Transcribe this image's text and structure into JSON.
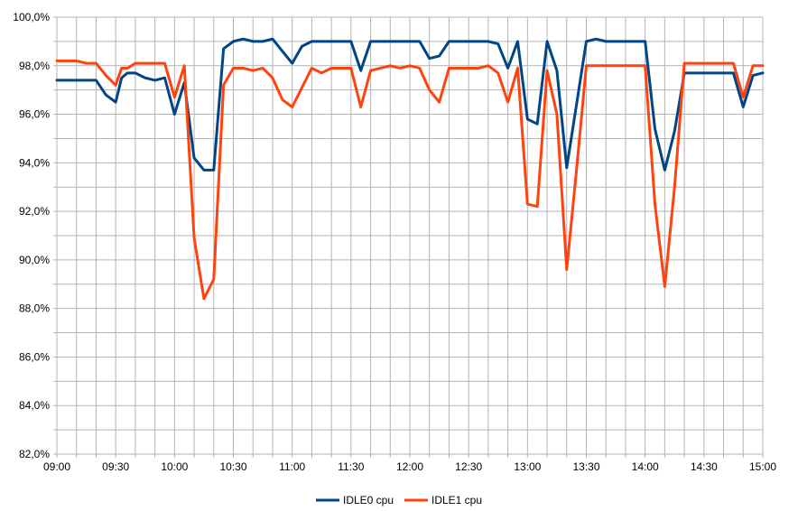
{
  "chart_data": {
    "type": "line",
    "title": "",
    "xlabel": "",
    "ylabel": "",
    "ylim": [
      82,
      100
    ],
    "xlim": [
      "09:00",
      "15:00"
    ],
    "y_ticks": [
      "82,0%",
      "84,0%",
      "86,0%",
      "88,0%",
      "90,0%",
      "92,0%",
      "94,0%",
      "96,0%",
      "98,0%",
      "100,0%"
    ],
    "x_ticks": [
      "09:00",
      "09:30",
      "10:00",
      "10:30",
      "11:00",
      "11:30",
      "12:00",
      "12:30",
      "13:00",
      "13:30",
      "14:00",
      "14:30",
      "15:00"
    ],
    "grid": true,
    "legend_position": "bottom",
    "series": [
      {
        "name": "IDLE0 cpu",
        "color": "#004586",
        "x": [
          "09:00",
          "09:05",
          "09:10",
          "09:15",
          "09:20",
          "09:25",
          "09:30",
          "09:33",
          "09:36",
          "09:40",
          "09:45",
          "09:50",
          "09:55",
          "10:00",
          "10:05",
          "10:10",
          "10:15",
          "10:20",
          "10:25",
          "10:30",
          "10:35",
          "10:40",
          "10:45",
          "10:50",
          "10:55",
          "11:00",
          "11:05",
          "11:10",
          "11:15",
          "11:20",
          "11:25",
          "11:30",
          "11:35",
          "11:40",
          "11:45",
          "11:50",
          "11:55",
          "12:00",
          "12:05",
          "12:10",
          "12:15",
          "12:20",
          "12:25",
          "12:30",
          "12:35",
          "12:40",
          "12:45",
          "12:50",
          "12:55",
          "13:00",
          "13:05",
          "13:10",
          "13:15",
          "13:20",
          "13:25",
          "13:30",
          "13:35",
          "13:40",
          "13:45",
          "13:50",
          "13:55",
          "14:00",
          "14:05",
          "14:10",
          "14:15",
          "14:20",
          "14:25",
          "14:30",
          "14:35",
          "14:40",
          "14:45",
          "14:50",
          "14:55",
          "15:00"
        ],
        "values": [
          97.4,
          97.4,
          97.4,
          97.4,
          97.4,
          96.8,
          96.5,
          97.5,
          97.7,
          97.7,
          97.5,
          97.4,
          97.5,
          96.0,
          97.3,
          94.2,
          93.7,
          93.7,
          98.7,
          99.0,
          99.1,
          99.0,
          99.0,
          99.1,
          98.6,
          98.1,
          98.8,
          99.0,
          99.0,
          99.0,
          99.0,
          99.0,
          97.8,
          99.0,
          99.0,
          99.0,
          99.0,
          99.0,
          99.0,
          98.3,
          98.4,
          99.0,
          99.0,
          99.0,
          99.0,
          99.0,
          98.9,
          97.9,
          99.0,
          95.8,
          95.6,
          99.0,
          97.8,
          93.8,
          96.4,
          99.0,
          99.1,
          99.0,
          99.0,
          99.0,
          99.0,
          99.0,
          95.4,
          93.7,
          95.3,
          97.7,
          97.7,
          97.7,
          97.7,
          97.7,
          97.7,
          96.3,
          97.6,
          97.7
        ]
      },
      {
        "name": "IDLE1 cpu",
        "color": "#ff420e",
        "x": [
          "09:00",
          "09:05",
          "09:10",
          "09:15",
          "09:20",
          "09:25",
          "09:30",
          "09:33",
          "09:36",
          "09:40",
          "09:45",
          "09:50",
          "09:55",
          "10:00",
          "10:05",
          "10:10",
          "10:15",
          "10:20",
          "10:25",
          "10:30",
          "10:35",
          "10:40",
          "10:45",
          "10:50",
          "10:55",
          "11:00",
          "11:05",
          "11:10",
          "11:15",
          "11:20",
          "11:25",
          "11:30",
          "11:35",
          "11:40",
          "11:45",
          "11:50",
          "11:55",
          "12:00",
          "12:05",
          "12:10",
          "12:15",
          "12:20",
          "12:25",
          "12:30",
          "12:35",
          "12:40",
          "12:45",
          "12:50",
          "12:55",
          "13:00",
          "13:05",
          "13:10",
          "13:15",
          "13:20",
          "13:25",
          "13:30",
          "13:35",
          "13:40",
          "13:45",
          "13:50",
          "13:55",
          "14:00",
          "14:05",
          "14:10",
          "14:15",
          "14:20",
          "14:25",
          "14:30",
          "14:35",
          "14:40",
          "14:45",
          "14:50",
          "14:55",
          "15:00"
        ],
        "values": [
          98.2,
          98.2,
          98.2,
          98.1,
          98.1,
          97.6,
          97.2,
          97.9,
          97.9,
          98.1,
          98.1,
          98.1,
          98.1,
          96.7,
          98.0,
          90.9,
          88.4,
          89.2,
          97.2,
          97.9,
          97.9,
          97.8,
          97.9,
          97.5,
          96.6,
          96.3,
          97.1,
          97.9,
          97.7,
          97.9,
          97.9,
          97.9,
          96.3,
          97.8,
          97.9,
          98.0,
          97.9,
          98.0,
          97.9,
          97.0,
          96.5,
          97.9,
          97.9,
          97.9,
          97.9,
          98.0,
          97.7,
          96.5,
          97.9,
          92.3,
          92.2,
          97.8,
          96.0,
          89.6,
          93.7,
          98.0,
          98.0,
          98.0,
          98.0,
          98.0,
          98.0,
          98.0,
          92.3,
          88.9,
          93.0,
          98.1,
          98.1,
          98.1,
          98.1,
          98.1,
          98.1,
          96.7,
          98.0,
          98.0
        ]
      }
    ]
  }
}
